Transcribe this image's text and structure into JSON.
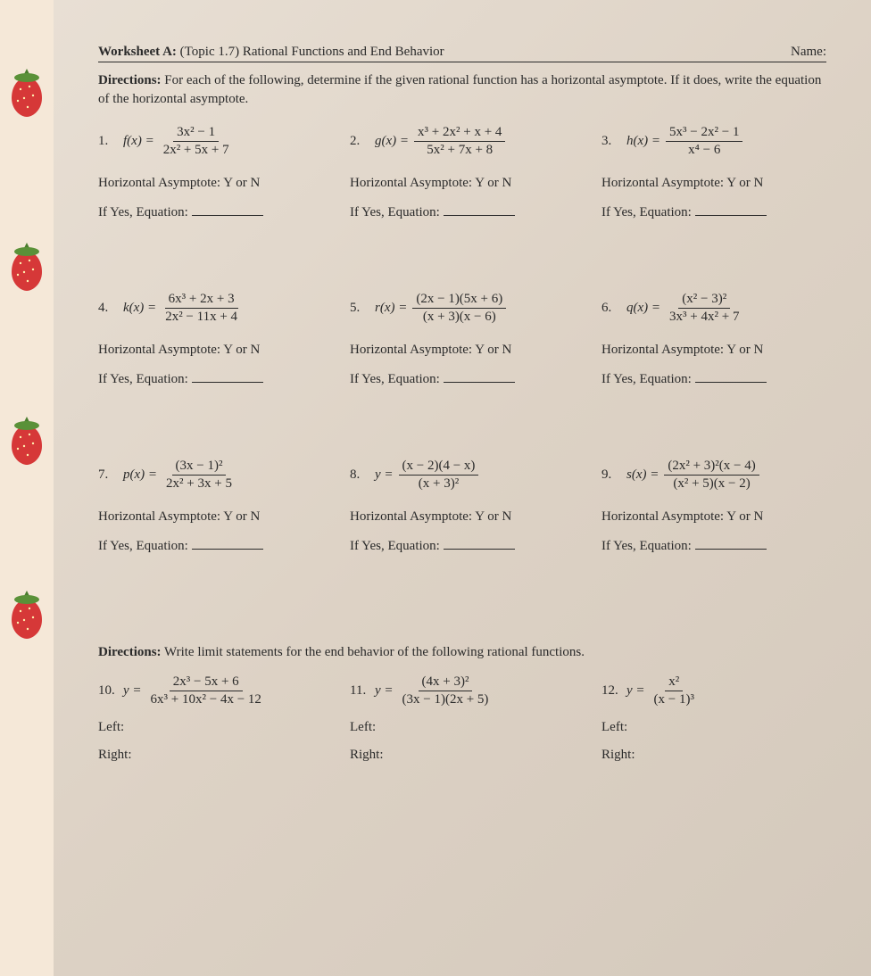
{
  "header": {
    "worksheet_label": "Worksheet A:",
    "topic": "(Topic 1.7)  Rational Functions and End Behavior",
    "name_label": "Name:"
  },
  "directions1": "Directions:",
  "directions1_text": " For each of the following, determine if the given rational function has a horizontal asymptote.  If it does, write the equation of the horizontal asymptote.",
  "ha_label": "Horizontal Asymptote:  Y  or  N",
  "eq_label": "If Yes, Equation:",
  "problems": [
    {
      "n": "1.",
      "lhs": "f(x) =",
      "top": "3x² − 1",
      "bot": "2x² + 5x + 7"
    },
    {
      "n": "2.",
      "lhs": "g(x) =",
      "top": "x³ + 2x² + x + 4",
      "bot": "5x² + 7x + 8"
    },
    {
      "n": "3.",
      "lhs": "h(x) =",
      "top": "5x³ − 2x² − 1",
      "bot": "x⁴ − 6"
    },
    {
      "n": "4.",
      "lhs": "k(x) =",
      "top": "6x³ + 2x + 3",
      "bot": "2x² − 11x + 4"
    },
    {
      "n": "5.",
      "lhs": "r(x) =",
      "top": "(2x − 1)(5x + 6)",
      "bot": "(x + 3)(x − 6)"
    },
    {
      "n": "6.",
      "lhs": "q(x) =",
      "top": "(x² − 3)²",
      "bot": "3x³ + 4x² + 7"
    },
    {
      "n": "7.",
      "lhs": "p(x) =",
      "top": "(3x − 1)²",
      "bot": "2x² + 3x + 5"
    },
    {
      "n": "8.",
      "lhs": "y =",
      "top": "(x − 2)(4 − x)",
      "bot": "(x + 3)²"
    },
    {
      "n": "9.",
      "lhs": "s(x) =",
      "top": "(2x² + 3)²(x − 4)",
      "bot": "(x² + 5)(x − 2)"
    }
  ],
  "directions2": "Directions:",
  "directions2_text": "  Write limit statements for the end behavior of the following rational functions.",
  "problems2": [
    {
      "n": "10.",
      "lhs": "y =",
      "top": "2x³ − 5x + 6",
      "bot": "6x³ + 10x² − 4x − 12"
    },
    {
      "n": "11.",
      "lhs": "y =",
      "top": "(4x + 3)²",
      "bot": "(3x − 1)(2x + 5)"
    },
    {
      "n": "12.",
      "lhs": "y =",
      "top": "x²",
      "bot": "(x − 1)³"
    }
  ],
  "left_label": "Left:",
  "right_label": "Right:",
  "colors": {
    "page_bg": "#ddd2c5",
    "text": "#2a2a2a",
    "outer_bg": "#b8a89a",
    "deco_bg": "#f5e8d8"
  },
  "strawberry_positions": [
    75,
    270,
    465,
    660
  ]
}
